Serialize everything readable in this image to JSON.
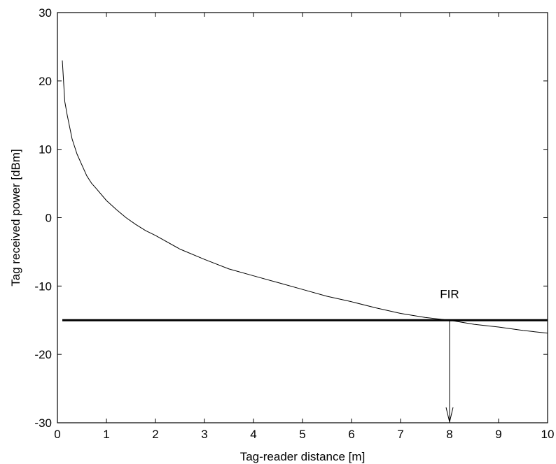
{
  "chart_data": {
    "type": "line",
    "title": "",
    "xlabel": "Tag-reader distance [m]",
    "ylabel": "Tag received power [dBm]",
    "xlim": [
      0,
      10
    ],
    "ylim": [
      -30,
      30
    ],
    "xticks": [
      0,
      1,
      2,
      3,
      4,
      5,
      6,
      7,
      8,
      9,
      10
    ],
    "yticks": [
      -30,
      -20,
      -10,
      0,
      10,
      20,
      30
    ],
    "grid": false,
    "legend": "none",
    "series": [
      {
        "x": [
          0.1,
          0.15,
          0.2,
          0.3,
          0.4,
          0.5,
          0.6,
          0.7,
          0.8,
          1.0,
          1.2,
          1.4,
          1.6,
          1.8,
          2.0,
          2.5,
          3.0,
          3.5,
          4.0,
          4.5,
          5.0,
          5.5,
          6.0,
          6.5,
          7.0,
          7.5,
          8.0,
          8.5,
          9.0,
          9.5,
          10.0
        ],
        "y": [
          23.0,
          17.0,
          15.0,
          11.5,
          9.3,
          7.7,
          6.1,
          5.0,
          4.2,
          2.5,
          1.2,
          0.0,
          -1.0,
          -1.9,
          -2.6,
          -4.6,
          -6.1,
          -7.5,
          -8.5,
          -9.5,
          -10.5,
          -11.5,
          -12.3,
          -13.2,
          -14.0,
          -14.6,
          -15.0,
          -15.6,
          -16.0,
          -16.5,
          -16.9
        ]
      }
    ],
    "threshold": {
      "y": -15
    },
    "annotation": {
      "text": "FIR",
      "arrow_x": 8,
      "arrow_from_y": -15,
      "arrow_to_y": -30
    },
    "colors": {
      "line": "#000000",
      "axes": "#000000",
      "background": "#ffffff"
    }
  }
}
